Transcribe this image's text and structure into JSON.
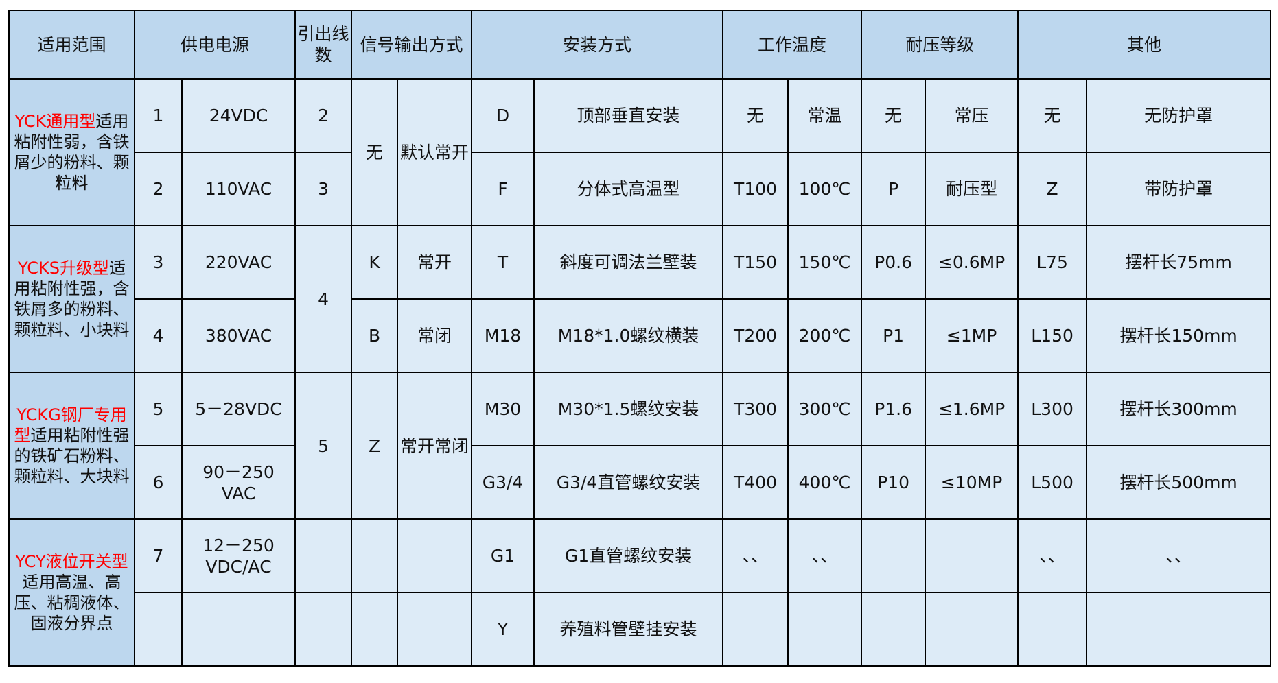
{
  "colors": {
    "header_bg": "#bdd7ee",
    "cell_bg": "#ddebf7",
    "highlight": "#ff0000",
    "border": "#000000"
  },
  "headers": [
    {
      "text": "适用范围",
      "colspan": 1
    },
    {
      "text": "供电电源",
      "colspan": 2
    },
    {
      "text": "引出线数",
      "colspan": 1
    },
    {
      "text": "信号输出方式",
      "colspan": 2
    },
    {
      "text": "安装方式",
      "colspan": 2
    },
    {
      "text": "工作温度",
      "colspan": 2
    },
    {
      "text": "耐压等级",
      "colspan": 2
    },
    {
      "text": "其他",
      "colspan": 2
    }
  ],
  "rows": [
    [
      {
        "scope_red": "YCK通用型",
        "scope_text": "适用粘附性弱，含铁屑少的粉料、颗粒料",
        "rowspan": 2
      },
      {
        "text": "1"
      },
      {
        "text": "24VDC"
      },
      {
        "text": "2"
      },
      {
        "text": "无",
        "rowspan": 2
      },
      {
        "text": "默认常开",
        "rowspan": 2
      },
      {
        "text": "D"
      },
      {
        "text": "顶部垂直安装"
      },
      {
        "text": "无"
      },
      {
        "text": "常温"
      },
      {
        "text": "无"
      },
      {
        "text": "常压"
      },
      {
        "text": "无"
      },
      {
        "text": "无防护罩"
      }
    ],
    [
      {
        "text": "2"
      },
      {
        "text": "110VAC"
      },
      {
        "text": "3"
      },
      {
        "text": "F"
      },
      {
        "text": "分体式高温型"
      },
      {
        "text": "T100"
      },
      {
        "text": "100℃"
      },
      {
        "text": "P"
      },
      {
        "text": "耐压型"
      },
      {
        "text": "Z"
      },
      {
        "text": "带防护罩"
      }
    ],
    [
      {
        "scope_red": "YCKS升级型",
        "scope_text": "适用粘附性强，含铁屑多的粉料、颗粒料、小块料",
        "rowspan": 2
      },
      {
        "text": "3"
      },
      {
        "text": "220VAC"
      },
      {
        "text": "4",
        "rowspan": 2
      },
      {
        "text": "K"
      },
      {
        "text": "常开"
      },
      {
        "text": "T"
      },
      {
        "text": "斜度可调法兰壁装"
      },
      {
        "text": "T150"
      },
      {
        "text": "150℃"
      },
      {
        "text": "P0.6"
      },
      {
        "text": "≤0.6MP"
      },
      {
        "text": "L75"
      },
      {
        "text": "摆杆长75mm"
      }
    ],
    [
      {
        "text": "4"
      },
      {
        "text": "380VAC"
      },
      {
        "text": "B"
      },
      {
        "text": "常闭"
      },
      {
        "text": "M18"
      },
      {
        "text": "M18*1.0螺纹横装"
      },
      {
        "text": "T200"
      },
      {
        "text": "200℃"
      },
      {
        "text": "P1"
      },
      {
        "text": "≤1MP"
      },
      {
        "text": "L150"
      },
      {
        "text": "摆杆长150mm"
      }
    ],
    [
      {
        "scope_red": "YCKG钢厂专用型",
        "scope_text": "适用粘附性强的铁矿石粉料、颗粒料、大块料",
        "rowspan": 2
      },
      {
        "text": "5"
      },
      {
        "text": "5－28VDC"
      },
      {
        "text": "5",
        "rowspan": 2
      },
      {
        "text": "Z",
        "rowspan": 2
      },
      {
        "text": "常开常闭",
        "rowspan": 2
      },
      {
        "text": "M30"
      },
      {
        "text": "M30*1.5螺纹安装"
      },
      {
        "text": "T300"
      },
      {
        "text": "300℃"
      },
      {
        "text": "P1.6"
      },
      {
        "text": "≤1.6MP"
      },
      {
        "text": "L300"
      },
      {
        "text": "摆杆长300mm"
      }
    ],
    [
      {
        "text": "6"
      },
      {
        "text": "90－250 VAC"
      },
      {
        "text": "G3/4"
      },
      {
        "text": "G3/4直管螺纹安装"
      },
      {
        "text": "T400"
      },
      {
        "text": "400℃"
      },
      {
        "text": "P10"
      },
      {
        "text": "≤10MP"
      },
      {
        "text": "L500"
      },
      {
        "text": "摆杆长500mm"
      }
    ],
    [
      {
        "scope_red": "YCY液位开关型",
        "scope_text": "适用高温、高压、粘稠液体、固液分界点",
        "rowspan": 2
      },
      {
        "text": "7"
      },
      {
        "text": "12－250 VDC/AC"
      },
      {
        "text": ""
      },
      {
        "text": ""
      },
      {
        "text": ""
      },
      {
        "text": "G1"
      },
      {
        "text": "G1直管螺纹安装"
      },
      {
        "text": "、、"
      },
      {
        "text": "、、"
      },
      {
        "text": ""
      },
      {
        "text": ""
      },
      {
        "text": "、、"
      },
      {
        "text": "、、"
      }
    ],
    [
      {
        "text": ""
      },
      {
        "text": ""
      },
      {
        "text": ""
      },
      {
        "text": ""
      },
      {
        "text": ""
      },
      {
        "text": "Y"
      },
      {
        "text": "养殖料管壁挂安装"
      },
      {
        "text": ""
      },
      {
        "text": ""
      },
      {
        "text": ""
      },
      {
        "text": ""
      },
      {
        "text": ""
      },
      {
        "text": ""
      }
    ]
  ]
}
